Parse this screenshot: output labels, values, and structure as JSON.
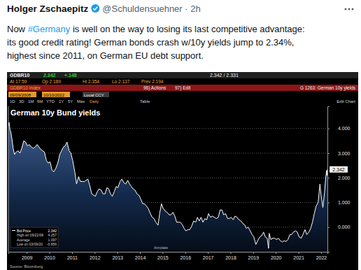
{
  "tweet": {
    "name": "Holger Zschaepitz",
    "meta": "@Schuldensuehner · 2h",
    "lines": [
      [
        "Now ",
        "#Germany",
        " is well on the way to losing its last competitive advantage:"
      ],
      [
        "its good credit rating! German bonds crash w/10y yields jump to 2.34%,"
      ],
      [
        "highest since 2011, on German EU debt support."
      ]
    ]
  },
  "terminal": {
    "row1": [
      "GDBR10",
      "2.342",
      "+.148",
      "2.342 / 2.331"
    ],
    "row2": [
      "At 17:59",
      "Op 2.189",
      "Hi 2.354",
      "Lo 2.137",
      "Prev 2.194"
    ],
    "row3": [
      "GDBR10 Index",
      "96) Actions",
      "97) Edit",
      "G 1263: German 10y yields"
    ],
    "row4": [
      "09/09/2008",
      "10/10/2022",
      "Local CCY"
    ],
    "row5": [
      "1D",
      "3D",
      "1M",
      "6M",
      "YTD",
      "1Y",
      "5Y",
      "Max",
      "Daily",
      "Table",
      "Edit Chart"
    ],
    "annotate": "Annotate",
    "source": "Source: Bloomberg"
  },
  "chart_data": {
    "type": "area",
    "title": "German 10y Bund yields",
    "x": [
      2008.69,
      2008.72,
      2008.76,
      2008.8,
      2008.85,
      2008.9,
      2008.96,
      2009.04,
      2009.12,
      2009.2,
      2009.28,
      2009.37,
      2009.45,
      2009.53,
      2009.62,
      2009.7,
      2009.79,
      2009.87,
      2009.96,
      2010.04,
      2010.12,
      2010.2,
      2010.28,
      2010.37,
      2010.45,
      2010.53,
      2010.62,
      2010.7,
      2010.79,
      2010.87,
      2010.96,
      2011.04,
      2011.12,
      2011.2,
      2011.28,
      2011.37,
      2011.45,
      2011.53,
      2011.62,
      2011.7,
      2011.79,
      2011.87,
      2011.96,
      2012.04,
      2012.12,
      2012.2,
      2012.28,
      2012.37,
      2012.45,
      2012.53,
      2012.62,
      2012.7,
      2012.79,
      2012.87,
      2012.96,
      2013.04,
      2013.12,
      2013.2,
      2013.28,
      2013.37,
      2013.45,
      2013.53,
      2013.62,
      2013.7,
      2013.79,
      2013.87,
      2013.96,
      2014.04,
      2014.12,
      2014.2,
      2014.28,
      2014.37,
      2014.45,
      2014.53,
      2014.62,
      2014.7,
      2014.79,
      2014.87,
      2014.96,
      2015.04,
      2015.12,
      2015.2,
      2015.3,
      2015.37,
      2015.45,
      2015.53,
      2015.62,
      2015.7,
      2015.79,
      2015.87,
      2015.96,
      2016.04,
      2016.12,
      2016.2,
      2016.28,
      2016.37,
      2016.45,
      2016.53,
      2016.62,
      2016.7,
      2016.79,
      2016.87,
      2016.96,
      2017.04,
      2017.12,
      2017.2,
      2017.28,
      2017.37,
      2017.45,
      2017.53,
      2017.62,
      2017.7,
      2017.79,
      2017.87,
      2017.96,
      2018.04,
      2018.12,
      2018.2,
      2018.28,
      2018.37,
      2018.45,
      2018.53,
      2018.62,
      2018.7,
      2018.79,
      2018.87,
      2018.96,
      2019.04,
      2019.12,
      2019.2,
      2019.28,
      2019.37,
      2019.45,
      2019.53,
      2019.62,
      2019.7,
      2019.79,
      2019.87,
      2019.96,
      2020.04,
      2020.12,
      2020.18,
      2020.21,
      2020.28,
      2020.37,
      2020.45,
      2020.53,
      2020.62,
      2020.7,
      2020.79,
      2020.87,
      2020.96,
      2021.04,
      2021.12,
      2021.2,
      2021.28,
      2021.37,
      2021.45,
      2021.53,
      2021.62,
      2021.7,
      2021.79,
      2021.87,
      2021.96,
      2022.04,
      2022.12,
      2022.2,
      2022.28,
      2022.37,
      2022.45,
      2022.5,
      2022.58,
      2022.65,
      2022.7,
      2022.74,
      2022.76,
      2022.78
    ],
    "series": [
      {
        "name": "Bid Price",
        "color": "#ffffff",
        "values": [
          4.1,
          4.25,
          3.95,
          3.85,
          3.55,
          3.2,
          2.95,
          3.05,
          3.1,
          3.0,
          3.2,
          3.5,
          3.45,
          3.3,
          3.35,
          3.25,
          3.2,
          3.25,
          3.35,
          3.25,
          3.15,
          3.1,
          3.05,
          2.7,
          2.6,
          2.65,
          2.3,
          2.25,
          2.4,
          2.6,
          2.95,
          3.1,
          3.25,
          3.3,
          3.45,
          3.1,
          3.0,
          2.7,
          2.25,
          1.75,
          2.05,
          1.85,
          1.85,
          1.85,
          1.9,
          1.95,
          1.7,
          1.35,
          1.3,
          1.25,
          1.45,
          1.55,
          1.5,
          1.35,
          1.35,
          1.6,
          1.55,
          1.35,
          1.25,
          1.45,
          1.65,
          1.6,
          1.85,
          1.95,
          1.8,
          1.75,
          1.9,
          1.75,
          1.65,
          1.55,
          1.5,
          1.35,
          1.3,
          1.15,
          0.95,
          0.95,
          0.85,
          0.75,
          0.55,
          0.4,
          0.35,
          0.2,
          0.08,
          0.55,
          0.95,
          0.75,
          0.65,
          0.6,
          0.5,
          0.5,
          0.6,
          0.45,
          0.2,
          0.2,
          0.2,
          0.1,
          -0.05,
          -0.15,
          -0.1,
          -0.1,
          0.05,
          0.25,
          0.2,
          0.4,
          0.25,
          0.4,
          0.2,
          0.35,
          0.3,
          0.55,
          0.4,
          0.45,
          0.4,
          0.35,
          0.4,
          0.7,
          0.7,
          0.5,
          0.55,
          0.35,
          0.35,
          0.4,
          0.3,
          0.45,
          0.4,
          0.3,
          0.25,
          0.15,
          0.1,
          -0.05,
          0.0,
          -0.15,
          -0.3,
          -0.4,
          -0.7,
          -0.55,
          -0.4,
          -0.35,
          -0.2,
          -0.4,
          -0.45,
          -0.86,
          -0.25,
          -0.5,
          -0.45,
          -0.45,
          -0.5,
          -0.45,
          -0.55,
          -0.6,
          -0.55,
          -0.58,
          -0.5,
          -0.3,
          -0.3,
          -0.2,
          -0.15,
          -0.2,
          -0.4,
          -0.45,
          -0.3,
          -0.1,
          -0.3,
          -0.2,
          -0.05,
          0.2,
          0.55,
          0.85,
          1.0,
          1.75,
          1.3,
          0.8,
          1.4,
          1.95,
          2.3,
          2.1,
          2.342
        ]
      }
    ],
    "xlim": [
      2008.69,
      2022.78
    ],
    "xticks": [
      {
        "value": 2009.5,
        "label": "2009"
      },
      {
        "value": 2010.5,
        "label": "2010"
      },
      {
        "value": 2011.5,
        "label": "2011"
      },
      {
        "value": 2012.5,
        "label": "2012"
      },
      {
        "value": 2013.5,
        "label": "2013"
      },
      {
        "value": 2014.5,
        "label": "2014"
      },
      {
        "value": 2015.5,
        "label": "2015"
      },
      {
        "value": 2016.5,
        "label": "2016"
      },
      {
        "value": 2017.5,
        "label": "2017"
      },
      {
        "value": 2018.5,
        "label": "2018"
      },
      {
        "value": 2019.5,
        "label": "2019"
      },
      {
        "value": 2020.5,
        "label": "2020"
      },
      {
        "value": 2021.5,
        "label": "2021"
      },
      {
        "value": 2022.5,
        "label": "2022"
      }
    ],
    "ylim": [
      -1.0,
      4.9
    ],
    "yticks": [
      {
        "value": 0,
        "label": "0.000"
      },
      {
        "value": 1,
        "label": "1.000"
      },
      {
        "value": 2,
        "label": "2.000"
      },
      {
        "value": 3,
        "label": "3.000"
      },
      {
        "value": 4,
        "label": "4.000"
      }
    ],
    "grid": true,
    "legend": "bottom-left",
    "last_value": 2.342,
    "stats": [
      {
        "label": "High on 09/22/08",
        "value": 4.257
      },
      {
        "label": "Average",
        "value": 1.097
      },
      {
        "label": "Low on 03/09/20",
        "value": -0.856
      }
    ]
  }
}
